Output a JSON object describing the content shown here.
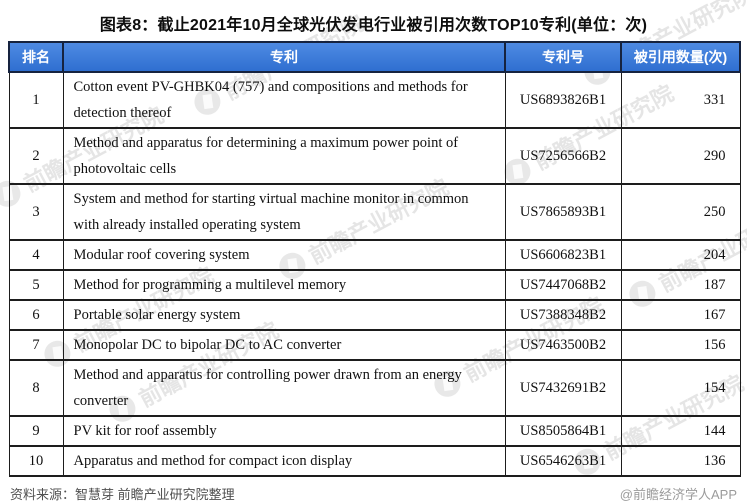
{
  "title": "图表8：截止2021年10月全球光伏发电行业被引用次数TOP10专利(单位：次)",
  "chart_data": {
    "type": "table",
    "title": "图表8：截止2021年10月全球光伏发电行业被引用次数TOP10专利(单位：次)",
    "unit": "次",
    "columns": [
      "排名",
      "专利",
      "专利号",
      "被引用数量(次)"
    ],
    "rows": [
      {
        "rank": "1",
        "patent": "Cotton event PV-GHBK04 (757) and compositions and methods for detection thereof",
        "number": "US6893826B1",
        "citations": "331"
      },
      {
        "rank": "2",
        "patent": "Method and apparatus for determining a maximum power point of photovoltaic cells",
        "number": "US7256566B2",
        "citations": "290"
      },
      {
        "rank": "3",
        "patent": "System and method for starting virtual machine monitor in common with already installed operating system",
        "number": "US7865893B1",
        "citations": "250"
      },
      {
        "rank": "4",
        "patent": "Modular roof covering system",
        "number": "US6606823B1",
        "citations": "204"
      },
      {
        "rank": "5",
        "patent": "Method for programming a multilevel memory",
        "number": "US7447068B2",
        "citations": "187"
      },
      {
        "rank": "6",
        "patent": "Portable solar energy system",
        "number": "US7388348B2",
        "citations": "167"
      },
      {
        "rank": "7",
        "patent": "Monopolar DC to bipolar DC to AC converter",
        "number": "US7463500B2",
        "citations": "156"
      },
      {
        "rank": "8",
        "patent": "Method and apparatus for controlling power drawn from an energy converter",
        "number": "US7432691B2",
        "citations": "154"
      },
      {
        "rank": "9",
        "patent": "PV kit for roof assembly",
        "number": "US8505864B1",
        "citations": "144"
      },
      {
        "rank": "10",
        "patent": "Apparatus and method for compact icon display",
        "number": "US6546263B1",
        "citations": "136"
      }
    ]
  },
  "footer": {
    "source": "资料来源：智慧芽 前瞻产业研究院整理",
    "brand": "@前瞻经济学人APP"
  },
  "watermark": {
    "text": "前瞻产业研究院"
  },
  "colors": {
    "header_bg_top": "#4e8ae3",
    "header_bg_bottom": "#2f6fd0",
    "header_text": "#ffffff",
    "border": "#1d1d1d",
    "title_text": "#0d0d0d",
    "source_text": "#4f4f4f",
    "brand_text": "#9b9b9b"
  }
}
